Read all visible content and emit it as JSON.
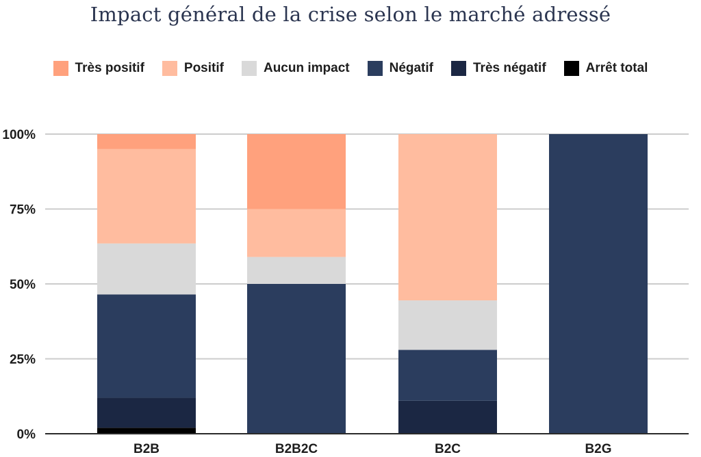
{
  "chart_data": {
    "type": "bar",
    "stacked": true,
    "percent": true,
    "title": "Impact général de la crise selon le marché adressé",
    "categories": [
      "B2B",
      "B2B2C",
      "B2C",
      "B2G"
    ],
    "series": [
      {
        "name": "Arrêt total",
        "color": "#000000",
        "values": [
          2,
          0,
          0,
          0
        ]
      },
      {
        "name": "Très négatif",
        "color": "#1b2743",
        "values": [
          10,
          0,
          11,
          0
        ]
      },
      {
        "name": "Négatif",
        "color": "#2b3d5e",
        "values": [
          34.5,
          50,
          17,
          100
        ]
      },
      {
        "name": "Aucun impact",
        "color": "#d9d9d9",
        "values": [
          17,
          9,
          16.5,
          0
        ]
      },
      {
        "name": "Positif",
        "color": "#ffbc9f",
        "values": [
          31.5,
          16,
          55.5,
          0
        ]
      },
      {
        "name": "Très positif",
        "color": "#ffa17d",
        "values": [
          5,
          25,
          0,
          0
        ]
      }
    ],
    "legend_order": [
      "Très positif",
      "Positif",
      "Aucun impact",
      "Négatif",
      "Très négatif",
      "Arrêt total"
    ],
    "y_ticks": [
      "0%",
      "25%",
      "50%",
      "75%",
      "100%"
    ],
    "ylim": [
      0,
      100
    ],
    "grid": true,
    "legend_position": "top"
  }
}
